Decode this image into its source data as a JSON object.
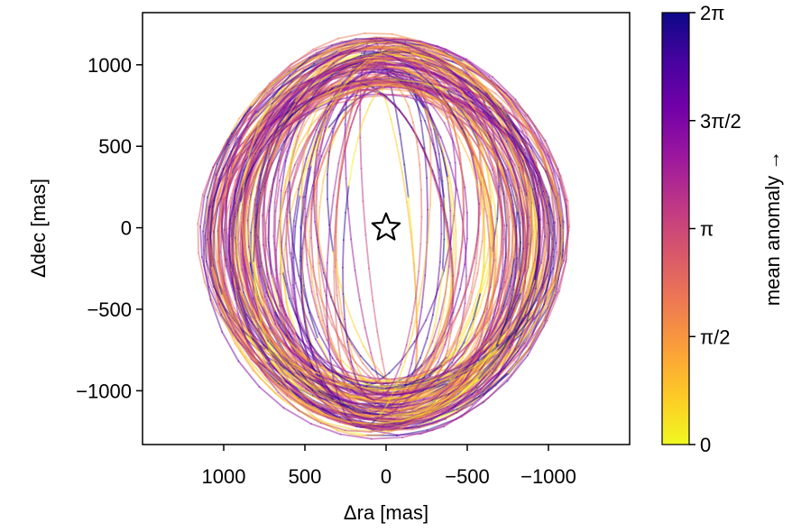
{
  "chart_data": {
    "type": "line",
    "xlabel": "Δra [mas]",
    "ylabel": "Δdec [mas]",
    "xlim": [
      1500,
      -1500
    ],
    "ylim": [
      -1330,
      1320
    ],
    "x_inverted": true,
    "xticks": [
      1000,
      500,
      0,
      -500,
      -1000
    ],
    "xtick_labels": [
      "1000",
      "500",
      "0",
      "−500",
      "−1000"
    ],
    "yticks": [
      1000,
      500,
      0,
      -500,
      -1000
    ],
    "ytick_labels": [
      "1000",
      "500",
      "0",
      "−500",
      "−1000"
    ],
    "grid": false,
    "star_marker": {
      "x": 0,
      "y": 0,
      "icon": "star-icon"
    },
    "orbits": {
      "description": "ensemble of sampled projected orbits, segments colored by mean anomaly",
      "count": 120,
      "center_ra": 10,
      "center_dec": -50,
      "ra_semi_axis_range": [
        130,
        1130
      ],
      "dec_semi_axis_range": [
        900,
        1220
      ],
      "tilt_deg_range": [
        -12,
        12
      ],
      "alpha": 0.5
    },
    "colorbar": {
      "label": "mean anomaly →",
      "colormap": "plasma",
      "range": [
        0,
        6.2832
      ],
      "ticks": [
        0,
        1.5708,
        3.1416,
        4.7124,
        6.2832
      ],
      "tick_labels": [
        "0",
        "π/2",
        "π",
        "3π/2",
        "2π"
      ],
      "colors": [
        "#0d0887",
        "#46039f",
        "#7201a8",
        "#9c179e",
        "#bd3786",
        "#d8576b",
        "#ed7953",
        "#fb9f3a",
        "#fdca26",
        "#f0f921"
      ]
    }
  }
}
